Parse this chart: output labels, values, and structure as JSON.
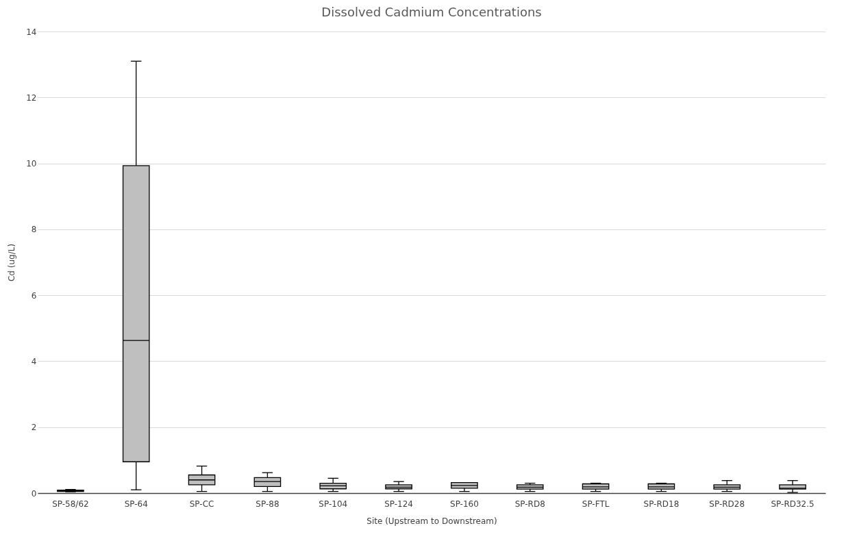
{
  "chart_data": {
    "type": "box",
    "title": "Dissolved Cadmium Concentrations",
    "xlabel": "Site (Upstream to Downstream)",
    "ylabel": "Cd (ug/L)",
    "categories": [
      "SP-58/62",
      "SP-64",
      "SP-CC",
      "SP-88",
      "SP-104",
      "SP-124",
      "SP-160",
      "SP-RD8",
      "SP-FTL",
      "SP-RD18",
      "SP-RD28",
      "SP-RD32.5"
    ],
    "boxes": [
      {
        "low": 0.04,
        "q1": 0.05,
        "median": 0.07,
        "q3": 0.09,
        "high": 0.11
      },
      {
        "low": 0.1,
        "q1": 0.95,
        "median": 4.63,
        "q3": 9.93,
        "high": 13.1
      },
      {
        "low": 0.05,
        "q1": 0.25,
        "median": 0.4,
        "q3": 0.55,
        "high": 0.82
      },
      {
        "low": 0.05,
        "q1": 0.2,
        "median": 0.35,
        "q3": 0.47,
        "high": 0.62
      },
      {
        "low": 0.05,
        "q1": 0.13,
        "median": 0.22,
        "q3": 0.3,
        "high": 0.45
      },
      {
        "low": 0.05,
        "q1": 0.13,
        "median": 0.18,
        "q3": 0.25,
        "high": 0.35
      },
      {
        "low": 0.05,
        "q1": 0.15,
        "median": 0.23,
        "q3": 0.32,
        "high": 0.32
      },
      {
        "low": 0.05,
        "q1": 0.12,
        "median": 0.18,
        "q3": 0.25,
        "high": 0.3
      },
      {
        "low": 0.05,
        "q1": 0.12,
        "median": 0.19,
        "q3": 0.28,
        "high": 0.3
      },
      {
        "low": 0.05,
        "q1": 0.12,
        "median": 0.19,
        "q3": 0.28,
        "high": 0.3
      },
      {
        "low": 0.05,
        "q1": 0.12,
        "median": 0.18,
        "q3": 0.25,
        "high": 0.38
      },
      {
        "low": 0.02,
        "q1": 0.12,
        "median": 0.15,
        "q3": 0.25,
        "high": 0.38
      }
    ],
    "color": "#bfbfbf",
    "ylim": [
      0,
      14
    ],
    "yticks": [
      0,
      2,
      4,
      6,
      8,
      10,
      12,
      14
    ],
    "grid": "y"
  }
}
